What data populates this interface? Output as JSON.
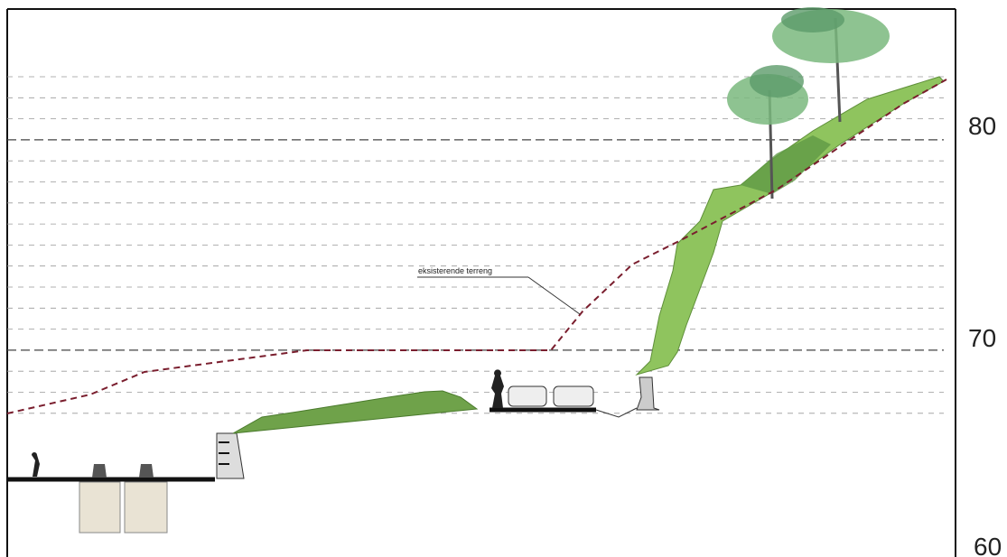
{
  "annotation": "eksisterende terreng",
  "elevation_labels": [
    80,
    70,
    60
  ]
}
